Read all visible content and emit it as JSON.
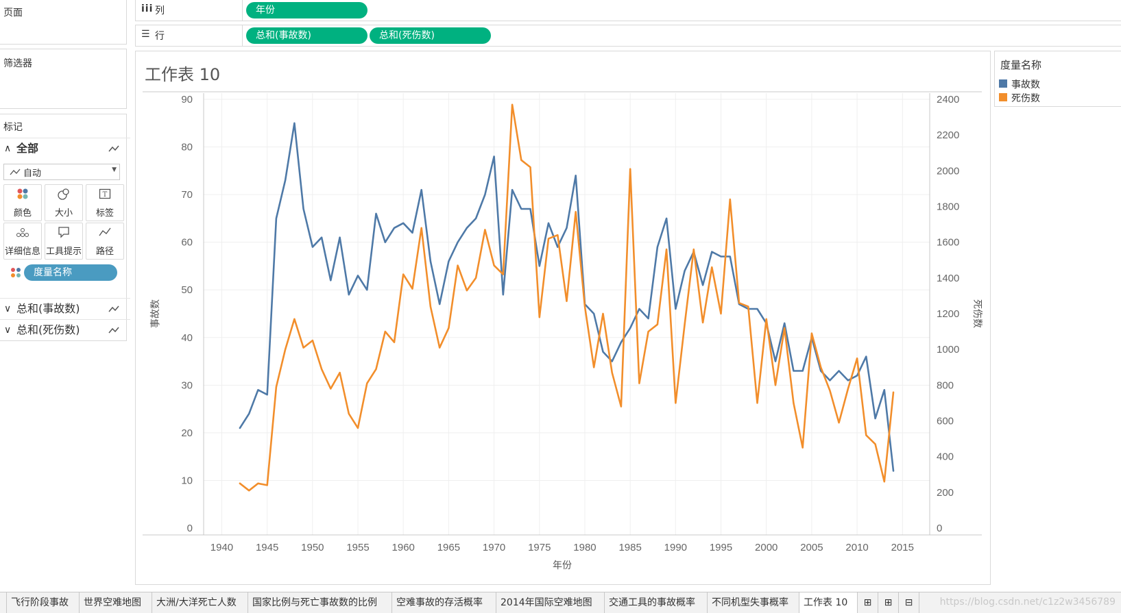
{
  "left_panel": {
    "pages_title": "页面",
    "filters_title": "筛选器",
    "marks_title": "标记",
    "all_label": "全部",
    "mark_type": "自动",
    "mark_buttons": [
      "颜色",
      "大小",
      "标签",
      "详细信息",
      "工具提示",
      "路径"
    ],
    "color_pill": "度量名称",
    "measure_sections": [
      "总和(事故数)",
      "总和(死伤数)"
    ]
  },
  "shelves": {
    "columns_label": "列",
    "rows_label": "行",
    "columns_pills": [
      "年份"
    ],
    "rows_pills": [
      "总和(事故数)",
      "总和(死伤数)"
    ]
  },
  "sheet": {
    "title": "工作表 10"
  },
  "legend": {
    "title": "度量名称",
    "items": [
      {
        "label": "事故数",
        "color": "#4e79a7"
      },
      {
        "label": "死伤数",
        "color": "#f28e2b"
      }
    ]
  },
  "tabs": [
    "飞行阶段事故",
    "世界空难地图",
    "大洲/大洋死亡人数",
    "国家比例与死亡事故数的比例",
    "空难事故的存活概率",
    "2014年国际空难地图",
    "交通工具的事故概率",
    "不同机型失事概率",
    "工作表 10"
  ],
  "watermark": "https://blog.csdn.net/c1z2w3456789",
  "chart_data": {
    "type": "line",
    "title": "工作表 10",
    "xlabel": "年份",
    "ylabel": "事故数",
    "y2label": "死伤数",
    "xlim": [
      1938,
      2018
    ],
    "ylim": [
      0,
      90
    ],
    "y2lim": [
      0,
      2400
    ],
    "x_ticks": [
      1940,
      1945,
      1950,
      1955,
      1960,
      1965,
      1970,
      1975,
      1980,
      1985,
      1990,
      1995,
      2000,
      2005,
      2010,
      2015
    ],
    "y_ticks": [
      0,
      10,
      20,
      30,
      40,
      50,
      60,
      70,
      80,
      90
    ],
    "y2_ticks": [
      0,
      200,
      400,
      600,
      800,
      1000,
      1200,
      1400,
      1600,
      1800,
      2000,
      2200,
      2400
    ],
    "x": [
      1942,
      1943,
      1944,
      1945,
      1946,
      1947,
      1948,
      1949,
      1950,
      1951,
      1952,
      1953,
      1954,
      1955,
      1956,
      1957,
      1958,
      1959,
      1960,
      1961,
      1962,
      1963,
      1964,
      1965,
      1966,
      1967,
      1968,
      1969,
      1970,
      1971,
      1972,
      1973,
      1974,
      1975,
      1976,
      1977,
      1978,
      1979,
      1980,
      1981,
      1982,
      1983,
      1984,
      1985,
      1986,
      1987,
      1988,
      1989,
      1990,
      1991,
      1992,
      1993,
      1994,
      1995,
      1996,
      1997,
      1998,
      1999,
      2000,
      2001,
      2002,
      2003,
      2004,
      2005,
      2006,
      2007,
      2008,
      2009,
      2010,
      2011,
      2012,
      2013,
      2014
    ],
    "series": [
      {
        "name": "事故数",
        "axis": "left",
        "color": "#4e79a7",
        "values": [
          21,
          24,
          29,
          28,
          65,
          73,
          85,
          67,
          59,
          61,
          52,
          61,
          49,
          53,
          50,
          66,
          60,
          63,
          64,
          62,
          71,
          56,
          47,
          56,
          60,
          63,
          65,
          70,
          78,
          49,
          71,
          67,
          67,
          55,
          64,
          59,
          63,
          74,
          47,
          45,
          37,
          35,
          39,
          42,
          46,
          44,
          59,
          65,
          46,
          54,
          58,
          51,
          58,
          57,
          57,
          47,
          46,
          46,
          43,
          35,
          43,
          33,
          33,
          40,
          33,
          31,
          33,
          31,
          32,
          36,
          23,
          29,
          12
        ]
      },
      {
        "name": "死伤数",
        "axis": "right",
        "color": "#f28e2b",
        "values": [
          250,
          210,
          250,
          240,
          790,
          1000,
          1170,
          1010,
          1050,
          890,
          780,
          870,
          640,
          560,
          810,
          890,
          1100,
          1040,
          1420,
          1340,
          1680,
          1240,
          1010,
          1120,
          1470,
          1330,
          1400,
          1670,
          1470,
          1420,
          2370,
          2060,
          2020,
          1180,
          1620,
          1640,
          1270,
          1770,
          1240,
          900,
          1200,
          870,
          680,
          2010,
          810,
          1100,
          1140,
          1560,
          700,
          1140,
          1560,
          1150,
          1460,
          1200,
          1840,
          1260,
          1240,
          700,
          1170,
          800,
          1120,
          700,
          450,
          1090,
          900,
          770,
          590,
          780,
          950,
          520,
          470,
          260,
          760
        ]
      }
    ]
  }
}
